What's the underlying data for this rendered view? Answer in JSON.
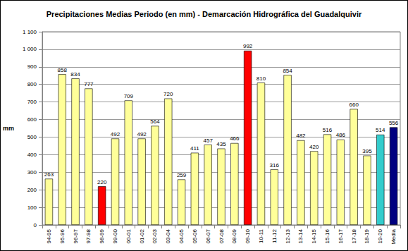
{
  "chart_data": {
    "type": "bar",
    "title": "Precipitaciones Medias Periodo (en mm) - Demarcación Hidrográfica del Guadalquivir",
    "y_label": "mm",
    "categories": [
      "94-95",
      "95-96",
      "96-97",
      "97-98",
      "98-99",
      "99-00",
      "00-01",
      "01-02",
      "02-03",
      "03-04",
      "04-05",
      "05-06",
      "06-07",
      "07-08",
      "08-09",
      "09-10",
      "10-11",
      "11-12",
      "12-13",
      "13-14",
      "14-15",
      "15-16",
      "16-17",
      "17-18",
      "18-19",
      "19-20",
      "Media"
    ],
    "values": [
      263,
      858,
      834,
      777,
      220,
      492,
      709,
      492,
      564,
      720,
      259,
      411,
      457,
      435,
      466,
      992,
      810,
      316,
      854,
      482,
      420,
      516,
      486,
      660,
      395,
      514,
      556
    ],
    "colors": [
      "#FFFF99",
      "#FFFF99",
      "#FFFF99",
      "#FFFF99",
      "#FF0000",
      "#FFFF99",
      "#FFFF99",
      "#FFFF99",
      "#FFFF99",
      "#FFFF99",
      "#FFFF99",
      "#FFFF99",
      "#FFFF99",
      "#FFFF99",
      "#FFFF99",
      "#FF0000",
      "#FFFF99",
      "#FFFF99",
      "#FFFF99",
      "#FFFF99",
      "#FFFF99",
      "#FFFF99",
      "#FFFF99",
      "#FFFF99",
      "#FFFF99",
      "#33CCCC",
      "#000080"
    ],
    "ylim": [
      0,
      1100
    ],
    "yticks": [
      0,
      100,
      200,
      300,
      400,
      500,
      600,
      700,
      800,
      900,
      {
        "value": 1000,
        "label": "1 000"
      },
      {
        "value": 1100,
        "label": "1 100"
      }
    ],
    "grid": true,
    "data_labels": true
  }
}
